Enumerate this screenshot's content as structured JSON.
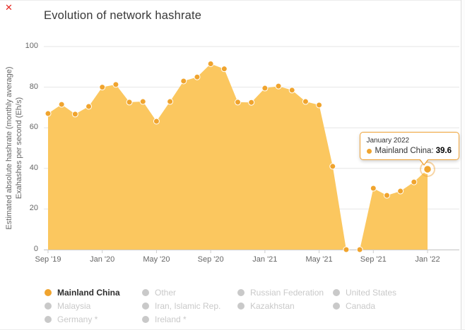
{
  "window": {
    "close_mark": "✕"
  },
  "header": {
    "title": "Evolution of network hashrate"
  },
  "y_axis": {
    "label_line1": "Estimated absolute hashrate (monthly average)",
    "label_line2": "Exahashes per second (Eh/s)"
  },
  "tooltip": {
    "date": "January 2022",
    "series": "Mainland China:",
    "value": "39.6"
  },
  "legend": {
    "columns": [
      [
        {
          "label": "Mainland China",
          "active": true
        },
        {
          "label": "Malaysia",
          "active": false
        },
        {
          "label": "Germany *",
          "active": false
        }
      ],
      [
        {
          "label": "Other",
          "active": false
        },
        {
          "label": "Iran, Islamic Rep.",
          "active": false
        },
        {
          "label": "Ireland *",
          "active": false
        }
      ],
      [
        {
          "label": "Russian Federation",
          "active": false
        },
        {
          "label": "Kazakhstan",
          "active": false
        }
      ],
      [
        {
          "label": "United States",
          "active": false
        },
        {
          "label": "Canada",
          "active": false
        }
      ]
    ]
  },
  "colors": {
    "accent": "#EFA236",
    "area_fill": "#FBC75F",
    "marker": "#F0A42E",
    "inactive": "#C9C9C9",
    "grid": "#E6E6E6",
    "axis_line": "#CCCCCC",
    "axis_text": "#666666",
    "title_text": "#383838",
    "tooltip_border": "#EFA236",
    "close_red": "#E52620"
  },
  "chart_data": {
    "type": "area",
    "title": "Evolution of network hashrate",
    "xlabel": "",
    "ylabel": "Estimated absolute hashrate (monthly average), Exahashes per second (Eh/s)",
    "ylim": [
      0,
      100
    ],
    "yticks": [
      0,
      20,
      40,
      60,
      80,
      100
    ],
    "xtick_labels": [
      "Sep '19",
      "Jan '20",
      "May '20",
      "Sep '20",
      "Jan '21",
      "May '21",
      "Sep '21",
      "Jan '22"
    ],
    "xtick_month_index": [
      0,
      4,
      8,
      12,
      16,
      20,
      24,
      28
    ],
    "grid": "horizontal",
    "legend_position": "bottom",
    "series": [
      {
        "name": "Mainland China",
        "months": [
          "Sep 2019",
          "Oct 2019",
          "Nov 2019",
          "Dec 2019",
          "Jan 2020",
          "Feb 2020",
          "Mar 2020",
          "Apr 2020",
          "May 2020",
          "Jun 2020",
          "Jul 2020",
          "Aug 2020",
          "Sep 2020",
          "Oct 2020",
          "Nov 2020",
          "Dec 2020",
          "Jan 2021",
          "Feb 2021",
          "Mar 2021",
          "Apr 2021",
          "May 2021",
          "Jun 2021",
          "Jul 2021",
          "Aug 2021",
          "Sep 2021",
          "Oct 2021",
          "Nov 2021",
          "Dec 2021",
          "Jan 2022"
        ],
        "values": [
          67,
          71.5,
          66.7,
          70.5,
          80,
          81.3,
          72.6,
          72.9,
          63.2,
          72.9,
          83,
          85,
          91.5,
          89,
          72.6,
          72.5,
          79.5,
          80.5,
          78.5,
          72.9,
          71.2,
          41,
          0,
          0,
          30.2,
          26.7,
          28.8,
          33.3,
          39.6
        ]
      }
    ],
    "highlighted_point": {
      "month": "January 2022",
      "series": "Mainland China",
      "value": 39.6
    }
  }
}
